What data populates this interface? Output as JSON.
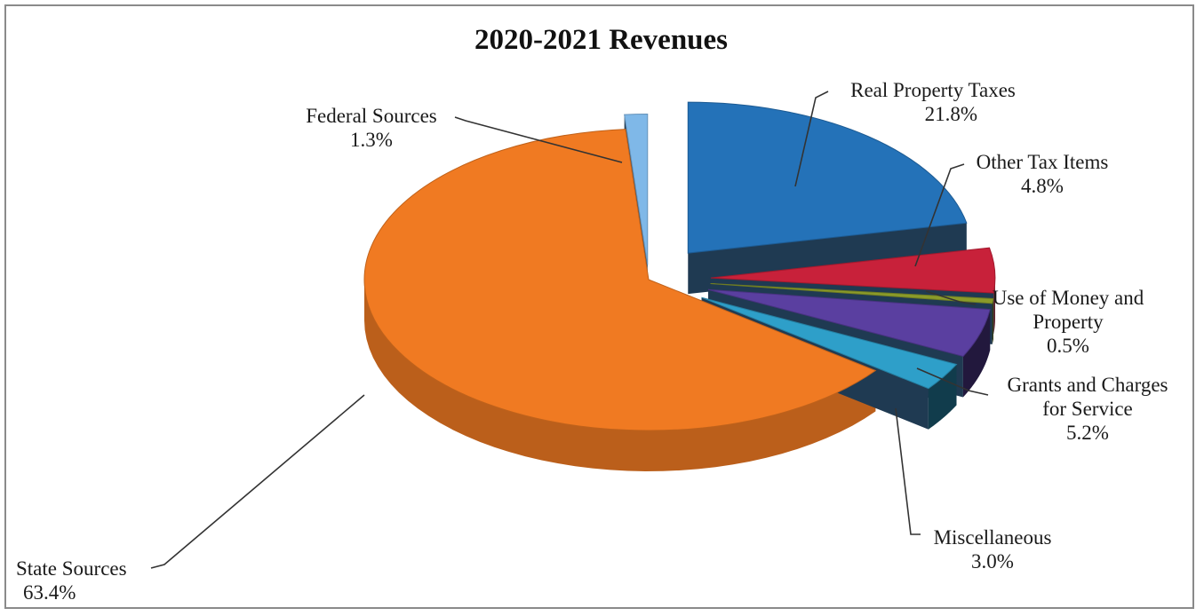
{
  "chart_data": {
    "type": "pie",
    "title": "2020-2021 Revenues",
    "series": [
      {
        "name": "Real Property Taxes",
        "label_lines": [
          "Real Property Taxes"
        ],
        "pct_text": "21.8%",
        "value": 21.8,
        "color": "#2472b8"
      },
      {
        "name": "Other Tax Items",
        "label_lines": [
          "Other Tax Items"
        ],
        "pct_text": "4.8%",
        "value": 4.8,
        "color": "#c8213a"
      },
      {
        "name": "Use of Money and Property",
        "label_lines": [
          "Use of Money and",
          "Property"
        ],
        "pct_text": "0.5%",
        "value": 0.5,
        "color": "#8b9b2a"
      },
      {
        "name": "Grants and Charges for Service",
        "label_lines": [
          "Grants and Charges",
          "for Service"
        ],
        "pct_text": "5.2%",
        "value": 5.2,
        "color": "#5a3fa0"
      },
      {
        "name": "Miscellaneous",
        "label_lines": [
          "Miscellaneous"
        ],
        "pct_text": "3.0%",
        "value": 3.0,
        "color": "#2e9fc9"
      },
      {
        "name": "State Sources",
        "label_lines": [
          "State Sources"
        ],
        "pct_text": "63.4%",
        "value": 63.4,
        "color": "#f07a22"
      },
      {
        "name": "Federal Sources",
        "label_lines": [
          "Federal Sources"
        ],
        "pct_text": "1.3%",
        "value": 1.3,
        "color": "#7fb8e8"
      }
    ],
    "style": "3d-exploded",
    "legend": "none"
  }
}
